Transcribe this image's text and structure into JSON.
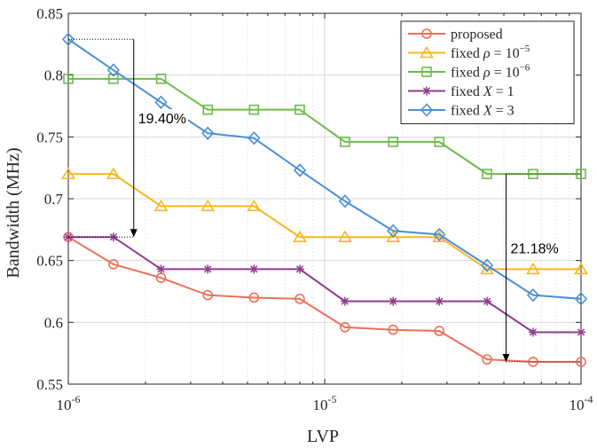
{
  "chart_data": {
    "type": "line",
    "xscale": "log",
    "x": [
      1e-06,
      1.5e-06,
      2.3e-06,
      3.5e-06,
      5.3e-06,
      8e-06,
      1.2e-05,
      1.85e-05,
      2.8e-05,
      4.3e-05,
      6.5e-05,
      0.0001
    ],
    "xlim": [
      1e-06,
      0.0001
    ],
    "ylim": [
      0.55,
      0.85
    ],
    "xlabel": "LVP",
    "ylabel": "Bandwidth (MHz)",
    "x_ticks": [
      {
        "base": "10",
        "exp": "-6"
      },
      {
        "base": "10",
        "exp": "-5"
      },
      {
        "base": "10",
        "exp": "-4"
      }
    ],
    "y_ticks": [
      "0.55",
      "0.6",
      "0.65",
      "0.7",
      "0.75",
      "0.8",
      "0.85"
    ],
    "y_tick_values": [
      0.55,
      0.6,
      0.65,
      0.7,
      0.75,
      0.8,
      0.85
    ],
    "grid": true,
    "legend_position": "top-right",
    "series": [
      {
        "name": "proposed",
        "legend": {
          "pre": "proposed",
          "italic": "",
          "post": "",
          "sup": ""
        },
        "color": "#ef6f5b",
        "marker": "circle",
        "values": [
          0.669,
          0.647,
          0.636,
          0.622,
          0.62,
          0.619,
          0.596,
          0.594,
          0.593,
          0.57,
          0.568,
          0.568
        ]
      },
      {
        "name": "fixed ρ = 10^-5",
        "legend": {
          "pre": "fixed ",
          "italic": "ρ",
          "post": " = 10",
          "sup": "−5"
        },
        "color": "#f5b820",
        "marker": "triangle",
        "values": [
          0.72,
          0.72,
          0.694,
          0.694,
          0.694,
          0.669,
          0.669,
          0.669,
          0.669,
          0.643,
          0.643,
          0.643
        ]
      },
      {
        "name": "fixed ρ = 10^-6",
        "legend": {
          "pre": "fixed ",
          "italic": "ρ",
          "post": " = 10",
          "sup": "−6"
        },
        "color": "#6cbb4b",
        "marker": "square",
        "values": [
          0.797,
          0.797,
          0.797,
          0.772,
          0.772,
          0.772,
          0.746,
          0.746,
          0.746,
          0.72,
          0.72,
          0.72
        ]
      },
      {
        "name": "fixed X = 1",
        "legend": {
          "pre": "fixed ",
          "italic": "X",
          "post": " = 1",
          "sup": ""
        },
        "color": "#8e3c8c",
        "marker": "star",
        "values": [
          0.669,
          0.669,
          0.643,
          0.643,
          0.643,
          0.643,
          0.617,
          0.617,
          0.617,
          0.617,
          0.592,
          0.592
        ]
      },
      {
        "name": "fixed X = 3",
        "legend": {
          "pre": "fixed ",
          "italic": "X",
          "post": " = 3",
          "sup": ""
        },
        "color": "#4a8fd6",
        "marker": "diamond",
        "values": [
          0.829,
          0.804,
          0.778,
          0.753,
          0.749,
          0.723,
          0.698,
          0.674,
          0.671,
          0.646,
          0.622,
          0.619
        ]
      }
    ],
    "annotations": [
      {
        "text": "19.40%",
        "x_data": 1.8e-06,
        "y_from": 0.829,
        "y_to": 0.669,
        "x_left": 1e-06
      },
      {
        "text": "21.18%",
        "x_data": 5.1e-05,
        "y_from": 0.72,
        "y_to": 0.568,
        "x_right": 0.0001
      }
    ]
  }
}
